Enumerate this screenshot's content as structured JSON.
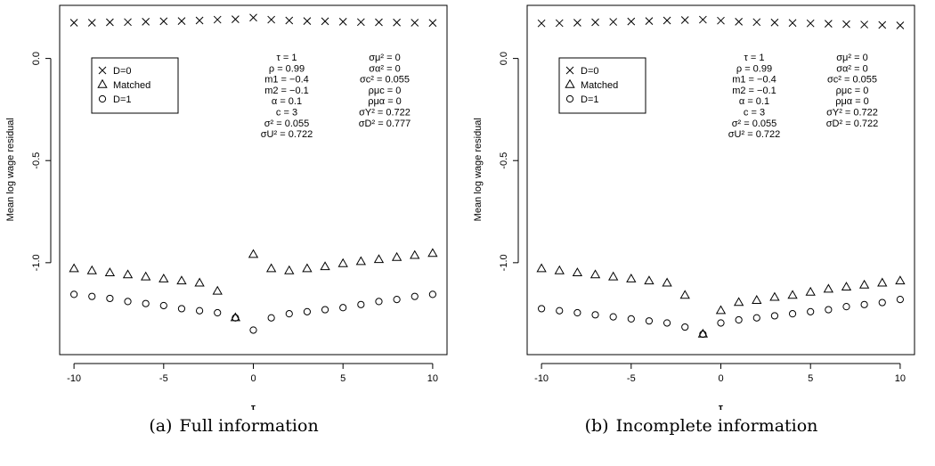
{
  "figures": [
    {
      "caption_label": "(a)",
      "caption_text": "Full information",
      "chart_data": {
        "type": "scatter",
        "xlabel": "τ",
        "ylabel": "Mean log wage residual",
        "xlim": [
          -10.8,
          10.8
        ],
        "ylim": [
          -1.45,
          0.26
        ],
        "x_ticks": [
          -10,
          -5,
          0,
          5,
          10
        ],
        "y_ticks": [
          0.0,
          -0.5,
          -1.0
        ],
        "y_tick_labels": [
          "0.0",
          "-0.5",
          "-1.0"
        ],
        "x_tick_labels": [
          "-10",
          "-5",
          "0",
          "5",
          "10"
        ],
        "grid": false,
        "legend_position": "top-left",
        "x": [
          -10,
          -9,
          -8,
          -7,
          -6,
          -5,
          -4,
          -3,
          -2,
          -1,
          0,
          1,
          2,
          3,
          4,
          5,
          6,
          7,
          8,
          9,
          10
        ],
        "series": [
          {
            "name": "D=0",
            "marker": "cross",
            "values": [
              0.175,
              0.175,
              0.177,
              0.178,
              0.18,
              0.182,
              0.183,
              0.186,
              0.19,
              0.192,
              0.2,
              0.19,
              0.186,
              0.183,
              0.182,
              0.18,
              0.178,
              0.177,
              0.176,
              0.175,
              0.174
            ]
          },
          {
            "name": "Matched",
            "marker": "triangle",
            "values": [
              -1.03,
              -1.04,
              -1.05,
              -1.06,
              -1.07,
              -1.08,
              -1.09,
              -1.1,
              -1.14,
              -1.27,
              -0.96,
              -1.03,
              -1.04,
              -1.03,
              -1.02,
              -1.005,
              -0.995,
              -0.985,
              -0.975,
              -0.965,
              -0.955
            ]
          },
          {
            "name": "D=1",
            "marker": "circle",
            "values": [
              -1.155,
              -1.165,
              -1.175,
              -1.19,
              -1.2,
              -1.21,
              -1.225,
              -1.235,
              -1.245,
              -1.27,
              -1.33,
              -1.27,
              -1.25,
              -1.24,
              -1.23,
              -1.22,
              -1.205,
              -1.19,
              -1.18,
              -1.165,
              -1.155
            ]
          }
        ],
        "params_left": [
          "τ = 1",
          "ρ = 0.99",
          "m1 = −0.4",
          "m2 = −0.1",
          "α = 0.1",
          "c = 3",
          "σ² = 0.055",
          "σU² = 0.722"
        ],
        "params_right": [
          "σμ² = 0",
          "σα² = 0",
          "σc² = 0.055",
          "ρμc = 0",
          "ρμα = 0",
          "σY² = 0.722",
          "σD² = 0.777"
        ]
      }
    },
    {
      "caption_label": "(b)",
      "caption_text": "Incomplete information",
      "chart_data": {
        "type": "scatter",
        "xlabel": "τ",
        "ylabel": "Mean log wage residual",
        "xlim": [
          -10.8,
          10.8
        ],
        "ylim": [
          -1.45,
          0.26
        ],
        "x_ticks": [
          -10,
          -5,
          0,
          5,
          10
        ],
        "y_ticks": [
          0.0,
          -0.5,
          -1.0
        ],
        "y_tick_labels": [
          "0.0",
          "-0.5",
          "-1.0"
        ],
        "x_tick_labels": [
          "-10",
          "-5",
          "0",
          "5",
          "10"
        ],
        "grid": false,
        "legend_position": "top-left",
        "x": [
          -10,
          -9,
          -8,
          -7,
          -6,
          -5,
          -4,
          -3,
          -2,
          -1,
          0,
          1,
          2,
          3,
          4,
          5,
          6,
          7,
          8,
          9,
          10
        ],
        "series": [
          {
            "name": "D=0",
            "marker": "cross",
            "values": [
              0.172,
              0.173,
              0.175,
              0.177,
              0.179,
              0.181,
              0.183,
              0.186,
              0.188,
              0.19,
              0.185,
              0.18,
              0.178,
              0.176,
              0.174,
              0.172,
              0.17,
              0.168,
              0.166,
              0.164,
              0.162
            ]
          },
          {
            "name": "Matched",
            "marker": "triangle",
            "values": [
              -1.03,
              -1.04,
              -1.05,
              -1.06,
              -1.07,
              -1.08,
              -1.09,
              -1.1,
              -1.16,
              -1.35,
              -1.235,
              -1.195,
              -1.185,
              -1.17,
              -1.16,
              -1.145,
              -1.13,
              -1.12,
              -1.11,
              -1.1,
              -1.09
            ]
          },
          {
            "name": "D=1",
            "marker": "circle",
            "values": [
              -1.225,
              -1.235,
              -1.245,
              -1.255,
              -1.265,
              -1.275,
              -1.285,
              -1.295,
              -1.315,
              -1.35,
              -1.295,
              -1.28,
              -1.27,
              -1.26,
              -1.25,
              -1.24,
              -1.23,
              -1.215,
              -1.205,
              -1.195,
              -1.18
            ]
          }
        ],
        "params_left": [
          "τ = 1",
          "ρ = 0.99",
          "m1 = −0.4",
          "m2 = −0.1",
          "α = 0.1",
          "c = 3",
          "σ² = 0.055",
          "σU² = 0.722"
        ],
        "params_right": [
          "σμ² = 0",
          "σα² = 0",
          "σc² = 0.055",
          "ρμc = 0",
          "ρμα = 0",
          "σY² = 0.722",
          "σD² = 0.722"
        ]
      }
    }
  ]
}
